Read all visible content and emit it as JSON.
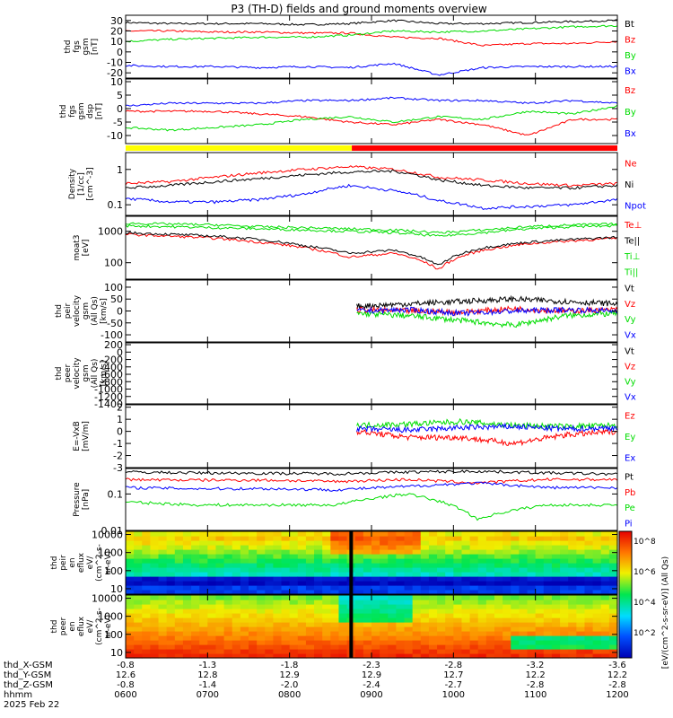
{
  "title": "P3 (TH-D) fields and ground moments overview",
  "time_axis": {
    "rows": [
      {
        "label": "thd_X-GSM",
        "values": [
          "-0.8",
          "-1.3",
          "-1.8",
          "-2.3",
          "-2.8",
          "-3.2",
          "-3.6"
        ]
      },
      {
        "label": "thd_Y-GSM",
        "values": [
          "12.6",
          "12.8",
          "12.9",
          "12.9",
          "12.7",
          "12.2",
          "12.2"
        ]
      },
      {
        "label": "thd_Z-GSM",
        "values": [
          "-0.8",
          "-1.4",
          "-2.0",
          "-2.4",
          "-2.7",
          "-2.8",
          "-2.8"
        ]
      },
      {
        "label": "hhmm",
        "values": [
          "0600",
          "0700",
          "0800",
          "0900",
          "1000",
          "1100",
          "1200"
        ]
      }
    ],
    "date": "2025 Feb 22"
  },
  "colors": {
    "black": "#000000",
    "red": "#ff0000",
    "green": "#00dd00",
    "blue": "#0000ff",
    "yellow": "#ffff00"
  },
  "panels": [
    {
      "ylabel": [
        "thd",
        "fgs",
        "gsm",
        "[nT]"
      ],
      "legend": [
        {
          "t": "Bt",
          "c": "black"
        },
        {
          "t": "Bz",
          "c": "red"
        },
        {
          "t": "By",
          "c": "green"
        },
        {
          "t": "Bx",
          "c": "blue"
        }
      ]
    },
    {
      "ylabel": [
        "thd",
        "fgs",
        "gsm",
        "dsp",
        "[nT]"
      ],
      "legend": [
        {
          "t": "Bz",
          "c": "red"
        },
        {
          "t": "By",
          "c": "green"
        },
        {
          "t": "Bx",
          "c": "blue"
        }
      ]
    },
    {
      "ylabel": [
        "Density",
        "[1/cc]",
        "[cm^-3]"
      ],
      "legend": [
        {
          "t": "Ne",
          "c": "red"
        },
        {
          "t": "Ni",
          "c": "black"
        },
        {
          "t": "Npot",
          "c": "blue"
        }
      ]
    },
    {
      "ylabel": [
        "moat3",
        "[eV]"
      ],
      "legend": [
        {
          "t": "Te⊥",
          "c": "red"
        },
        {
          "t": "Te||",
          "c": "black"
        },
        {
          "t": "Ti⊥",
          "c": "green"
        },
        {
          "t": "Ti||",
          "c": "green"
        }
      ]
    },
    {
      "ylabel": [
        "thd",
        "peir",
        "velocity",
        "gsm",
        "(All Qs)",
        "[km/s]"
      ],
      "legend": [
        {
          "t": "Vt",
          "c": "black"
        },
        {
          "t": "Vz",
          "c": "red"
        },
        {
          "t": "Vy",
          "c": "green"
        },
        {
          "t": "Vx",
          "c": "blue"
        }
      ]
    },
    {
      "ylabel": [
        "thd",
        "peer",
        "velocity",
        "gsm",
        "(All Qs)",
        "[km/s]"
      ],
      "legend": [
        {
          "t": "Vt",
          "c": "black"
        },
        {
          "t": "Vz",
          "c": "red"
        },
        {
          "t": "Vy",
          "c": "green"
        },
        {
          "t": "Vx",
          "c": "blue"
        }
      ]
    },
    {
      "ylabel": [
        "E=-VxB",
        "[mV/m]"
      ],
      "legend": [
        {
          "t": "Ez",
          "c": "red"
        },
        {
          "t": "Ey",
          "c": "green"
        },
        {
          "t": "Ex",
          "c": "blue"
        }
      ]
    },
    {
      "ylabel": [
        "Pressure",
        "[nPa]"
      ],
      "legend": [
        {
          "t": "Pt",
          "c": "black"
        },
        {
          "t": "Pb",
          "c": "red"
        },
        {
          "t": "Pe",
          "c": "green"
        },
        {
          "t": "Pi",
          "c": "blue"
        }
      ]
    },
    {
      "ylabel": [
        "thd",
        "peir",
        "en",
        "eflux",
        "eV/",
        "(cm^2-s-",
        "sr-eV)"
      ],
      "legend": []
    },
    {
      "ylabel": [
        "thd",
        "peer",
        "en",
        "eflux",
        "eV/",
        "(cm^2-s-",
        "sr-eV)"
      ],
      "legend": []
    }
  ],
  "colorbar": {
    "label": "[eV/(cm^2-s-sr-eV)] (All Qs)",
    "ticks": [
      "10^8",
      "10^6",
      "10^4",
      "10^2"
    ]
  },
  "chart_data": [
    {
      "type": "line",
      "panel": "fgs gsm",
      "ylim": [
        -25,
        35
      ],
      "yticks": [
        -20,
        -10,
        0,
        10,
        20,
        30
      ],
      "series": [
        {
          "name": "Bt",
          "approx": [
            28,
            27,
            27,
            27,
            26,
            27,
            30,
            27,
            27,
            28,
            29,
            30
          ]
        },
        {
          "name": "Bz",
          "approx": [
            20,
            20,
            19,
            19,
            18,
            18,
            14,
            13,
            6,
            8,
            8,
            10
          ]
        },
        {
          "name": "By",
          "approx": [
            10,
            12,
            13,
            14,
            14,
            16,
            20,
            19,
            20,
            22,
            24,
            25
          ]
        },
        {
          "name": "Bx",
          "approx": [
            -13,
            -14,
            -14,
            -15,
            -14,
            -15,
            -11,
            -22,
            -15,
            -14,
            -14,
            -14
          ]
        }
      ]
    },
    {
      "type": "line",
      "panel": "fgs gsm dsp",
      "ylim": [
        -13,
        11
      ],
      "yticks": [
        -10,
        -5,
        0,
        5,
        10
      ],
      "series": [
        {
          "name": "Bz",
          "approx": [
            -1,
            -1,
            -1,
            -2,
            -3,
            -5,
            -6,
            -4,
            -6,
            -10,
            -4,
            -4
          ]
        },
        {
          "name": "By",
          "approx": [
            -7,
            -8,
            -7,
            -6,
            -4,
            -3,
            -5,
            -3,
            -4,
            -1,
            -2,
            1
          ]
        },
        {
          "name": "Bx",
          "approx": [
            1,
            2,
            2,
            2,
            3,
            3,
            4,
            3,
            3,
            2,
            3,
            2
          ]
        }
      ]
    },
    {
      "type": "line",
      "panel": "Density",
      "ylog": true,
      "ylim": [
        0.05,
        3
      ],
      "yticks": [
        0.1,
        1.0
      ],
      "series": [
        {
          "name": "Ne",
          "approx": [
            0.4,
            0.45,
            0.6,
            0.8,
            1.0,
            1.2,
            1.0,
            0.6,
            0.5,
            0.4,
            0.35,
            0.4
          ]
        },
        {
          "name": "Ni",
          "approx": [
            0.3,
            0.35,
            0.45,
            0.55,
            0.7,
            0.85,
            0.9,
            0.5,
            0.35,
            0.3,
            0.3,
            0.35
          ]
        },
        {
          "name": "Npot",
          "approx": [
            0.15,
            0.12,
            0.12,
            0.14,
            0.2,
            0.35,
            0.25,
            0.13,
            0.08,
            0.09,
            0.1,
            0.14
          ]
        }
      ]
    },
    {
      "type": "line",
      "panel": "moat3",
      "ylog": true,
      "ylim": [
        30,
        3000
      ],
      "yticks": [
        100,
        1000
      ],
      "series": [
        {
          "name": "Te⊥",
          "approx": [
            800,
            700,
            600,
            450,
            300,
            150,
            200,
            60,
            250,
            400,
            500,
            600
          ]
        },
        {
          "name": "Te||",
          "approx": [
            900,
            800,
            700,
            550,
            350,
            200,
            250,
            80,
            300,
            450,
            550,
            650
          ]
        },
        {
          "name": "Ti⊥",
          "approx": [
            1500,
            1400,
            1300,
            1200,
            1100,
            1000,
            900,
            700,
            900,
            1200,
            1400,
            1500
          ]
        },
        {
          "name": "Ti||",
          "approx": [
            1800,
            1700,
            1600,
            1400,
            1300,
            1200,
            1100,
            900,
            1100,
            1400,
            1600,
            1700
          ]
        }
      ]
    },
    {
      "type": "line",
      "panel": "peir velocity",
      "ylim": [
        -130,
        130
      ],
      "yticks": [
        -100,
        -50,
        0,
        50,
        100
      ],
      "series": [
        {
          "name": "Vt",
          "approx": [
            20,
            30,
            40,
            50,
            40,
            30
          ]
        },
        {
          "name": "Vz",
          "approx": [
            5,
            0,
            -5,
            10,
            0,
            5
          ]
        },
        {
          "name": "Vy",
          "approx": [
            -10,
            -20,
            -40,
            -60,
            -20,
            -10
          ]
        },
        {
          "name": "Vx",
          "approx": [
            0,
            5,
            -10,
            0,
            5,
            0
          ]
        }
      ]
    },
    {
      "type": "line",
      "panel": "peer velocity",
      "ylim": [
        -1400,
        250
      ],
      "yticks": [
        -1400,
        -1200,
        -1000,
        -800,
        -600,
        -400,
        -200,
        0,
        200
      ],
      "series": []
    },
    {
      "type": "line",
      "panel": "E=-VxB",
      "ylim": [
        -3,
        2.2
      ],
      "yticks": [
        -3,
        -2,
        -1,
        0,
        1,
        2
      ],
      "series": [
        {
          "name": "Ez",
          "approx": [
            0,
            -0.5,
            -0.5,
            -1,
            -0.3,
            0
          ]
        },
        {
          "name": "Ey",
          "approx": [
            0.5,
            0.6,
            0.8,
            0.5,
            0.4,
            0.5
          ]
        },
        {
          "name": "Ex",
          "approx": [
            0.2,
            0.1,
            0.3,
            0.4,
            0.2,
            0.3
          ]
        }
      ]
    },
    {
      "type": "line",
      "panel": "Pressure",
      "ylog": true,
      "ylim": [
        0.01,
        0.5
      ],
      "yticks": [
        0.01,
        0.1
      ],
      "series": [
        {
          "name": "Pt",
          "approx": [
            0.4,
            0.38,
            0.37,
            0.36,
            0.4,
            0.42,
            0.38,
            0.35
          ]
        },
        {
          "name": "Pb",
          "approx": [
            0.25,
            0.24,
            0.24,
            0.22,
            0.25,
            0.2,
            0.25,
            0.25
          ]
        },
        {
          "name": "Pe",
          "approx": [
            0.06,
            0.05,
            0.05,
            0.05,
            0.1,
            0.02,
            0.05,
            0.05
          ]
        },
        {
          "name": "Pi",
          "approx": [
            0.15,
            0.14,
            0.14,
            0.13,
            0.16,
            0.2,
            0.15,
            0.15
          ]
        }
      ]
    },
    {
      "type": "heatmap",
      "panel": "peir eflux",
      "ylog": true,
      "ylim": [
        5,
        15000
      ],
      "yticks": [
        10,
        100,
        1000,
        10000
      ]
    },
    {
      "type": "heatmap",
      "panel": "peer eflux",
      "ylog": true,
      "ylim": [
        5,
        15000
      ],
      "yticks": [
        10,
        100,
        1000,
        10000
      ]
    }
  ]
}
